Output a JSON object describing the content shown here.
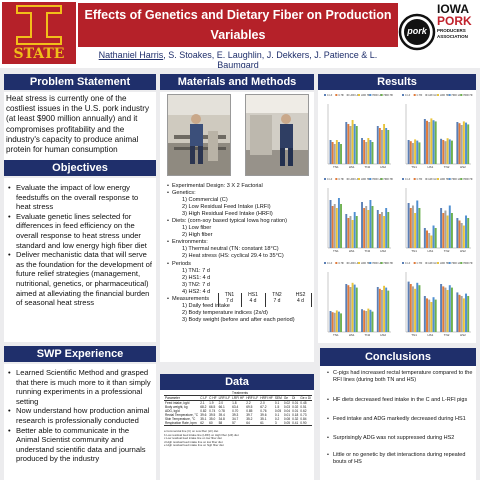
{
  "header": {
    "title_line1": "Effects of Genetics and Dietary Fiber on Production Variables",
    "title_line2": "in Response to Repeated Exposures to Heat Stress",
    "first_author": "Nathaniel Harris",
    "other_authors": ", S. Stoakes, E. Laughlin, J. Dekkers, J. Patience & L. Baumgard",
    "isu_logo_text": "STATE",
    "pork_logo_text": "pork",
    "iowa_logo": {
      "line1": "IOWA",
      "line2": "PORK",
      "line3": "PRODUCERS",
      "line4": "ASSOCIATION"
    }
  },
  "colors": {
    "title_bg": "#b52129",
    "section_bg": "#1f2f6b",
    "band_bg": "#ececee",
    "series": [
      "#5b7fb5",
      "#e07a3a",
      "#a5a5a5",
      "#e8c43c",
      "#4f8fd1",
      "#6db14f"
    ]
  },
  "problem": {
    "heading": "Problem Statement",
    "text": "Heat stress is currently one of the costliest issues in the U.S. pork industry (at least $900 million annually) and it compromises profitability and the industry's capacity to produce animal protein for human consumption"
  },
  "objectives": {
    "heading": "Objectives",
    "items": [
      "Evaluate the impact of low energy feedstuffs on the overall response to heat stress",
      "Evaluate genetic lines selected for differences in feed efficiency on the overall response to heat stress under standard and low energy high fiber diet",
      "Deliver mechanistic data that will serve as the foundation for the development of future relief strategies (management, nutritional, genetics, or pharmaceutical) aimed at alleviating the financial burden of seasonal heat stress"
    ]
  },
  "swp": {
    "heading": "SWP Experience",
    "items": [
      "Learned Scientific Method and grasped that there is much more to it than simply running experiments in a professional setting",
      "Now understand how production animal research is professionally conducted",
      "Better able to communicate in the Animal Scientist community and understand scientific data and journals produced by the industry"
    ]
  },
  "materials": {
    "heading": "Materials and Methods",
    "lines": [
      {
        "level": 1,
        "text": "Experimental Design: 3 X 2 Factorial"
      },
      {
        "level": 1,
        "text": "Genetics:"
      },
      {
        "level": 2,
        "text": "1)  Commercial (C)"
      },
      {
        "level": 2,
        "text": "2)  Low Residual Feed Intake (LRFI)"
      },
      {
        "level": 2,
        "text": "3)  High Residual Feed Intake (HRFI)"
      },
      {
        "level": 1,
        "text": "Diets: (corn-soy based typical Iowa hog ration)"
      },
      {
        "level": 2,
        "text": "1) Low fiber"
      },
      {
        "level": 2,
        "text": "2) High fiber"
      },
      {
        "level": 1,
        "text": "Environments:"
      },
      {
        "level": 2,
        "text": "1)  Thermal neutral (TN: constant 18°C)"
      },
      {
        "level": 2,
        "text": "2)  Heat stress (HS: cyclical 29.4 to 35°C)"
      },
      {
        "level": 1,
        "text": "Periods"
      },
      {
        "level": 2,
        "text": "1)  TN1: 7 d"
      },
      {
        "level": 2,
        "text": "2)  HS1: 4 d"
      },
      {
        "level": 2,
        "text": "3)  TN2: 7 d"
      },
      {
        "level": 2,
        "text": "4)  HS2: 4 d"
      },
      {
        "level": 1,
        "text": "Measurements"
      },
      {
        "level": 2,
        "text": "1)  Daily feed intake"
      },
      {
        "level": 2,
        "text": "2)  Body temperature indices (2x/d)"
      },
      {
        "level": 2,
        "text": "3)  Body weight (before and after each period)"
      }
    ],
    "timeline": [
      {
        "period": "TN1",
        "days": "7 d"
      },
      {
        "period": "HS1",
        "days": "4 d"
      },
      {
        "period": "TN2",
        "days": "7 d"
      },
      {
        "period": "HS2",
        "days": "4 d"
      }
    ]
  },
  "data": {
    "heading": "Data",
    "group_header": "Treatments",
    "columns": [
      "Parameter",
      "C LF",
      "C HF",
      "LRFI LF",
      "LRFI HF",
      "HRFI LF",
      "HRFI HF",
      "SEM",
      "Ge",
      "Di",
      "Ge x Di"
    ],
    "rows": [
      [
        "Feed intake, kg/d",
        "2.1",
        "1.9",
        "2.0",
        "1.8",
        "2.2",
        "2.0",
        "0.1",
        "0.02",
        "0.01",
        "0.45"
      ],
      [
        "Body weight, kg",
        "68.2",
        "66.5",
        "66.1",
        "63.4",
        "69.5",
        "67.2",
        "1.5",
        "0.03",
        "0.02",
        "0.51"
      ],
      [
        "ADG, kg/d",
        "0.82",
        "0.74",
        "0.78",
        "0.70",
        "0.85",
        "0.76",
        "0.05",
        "0.04",
        "0.01",
        "0.62"
      ],
      [
        "Rectal Temperature, °C",
        "39.6",
        "39.5",
        "39.4",
        "39.3",
        "39.7",
        "39.6",
        "0.1",
        "0.01",
        "0.18",
        "0.73"
      ],
      [
        "Skin Temperature, °C",
        "35.1",
        "35.0",
        "34.8",
        "34.7",
        "35.2",
        "35.1",
        "0.2",
        "0.08",
        "0.32",
        "0.84"
      ],
      [
        "Respiration Rate, bpm",
        "62",
        "60",
        "58",
        "57",
        "64",
        "61",
        "3",
        "0.05",
        "0.41",
        "0.90"
      ]
    ],
    "footnotes": [
      "a Commercial line (C) on Low fiber (LF) diet",
      "b Low residual feed intake line (LRFI) on High fiber (HF) diet",
      "c Low residual feed intake line on low fiber diet",
      "d High residual feed intake line on low fiber diet",
      "e High residual feed intake line on high fiber diet"
    ]
  },
  "results": {
    "heading": "Results",
    "legend_items": [
      "C LF",
      "C HF",
      "LRFI LF",
      "LRFI HF",
      "HRFI LF",
      "HRFI HF"
    ]
  },
  "chart_data": [
    {
      "type": "bar",
      "categories": [
        "TN1",
        "HS1",
        "TN2",
        "HS2"
      ],
      "series": [
        {
          "values": [
            39.2,
            40.1,
            39.3,
            39.9
          ]
        },
        {
          "values": [
            39.1,
            40.0,
            39.2,
            39.8
          ]
        },
        {
          "values": [
            39.0,
            39.9,
            39.1,
            39.7
          ]
        },
        {
          "values": [
            39.2,
            40.2,
            39.3,
            40.0
          ]
        },
        {
          "values": [
            39.1,
            40.0,
            39.2,
            39.8
          ]
        },
        {
          "values": [
            39.0,
            39.9,
            39.1,
            39.7
          ]
        }
      ],
      "ylim": [
        38,
        41
      ]
    },
    {
      "type": "bar",
      "categories": [
        "TN1",
        "HS1",
        "TN2",
        "HS2"
      ],
      "series": [
        {
          "values": [
            34.0,
            37.5,
            34.2,
            37.0
          ]
        },
        {
          "values": [
            33.8,
            37.2,
            34.0,
            36.8
          ]
        },
        {
          "values": [
            33.5,
            37.0,
            33.8,
            36.5
          ]
        },
        {
          "values": [
            34.1,
            37.6,
            34.3,
            37.1
          ]
        },
        {
          "values": [
            33.9,
            37.3,
            34.1,
            36.9
          ]
        },
        {
          "values": [
            33.6,
            37.1,
            33.9,
            36.6
          ]
        }
      ],
      "ylim": [
        30,
        40
      ]
    },
    {
      "type": "bar",
      "categories": [
        "TN1",
        "HS1",
        "TN2",
        "HS2"
      ],
      "series": [
        {
          "values": [
            2.4,
            1.7,
            2.3,
            1.9
          ]
        },
        {
          "values": [
            2.1,
            1.5,
            2.0,
            1.7
          ]
        },
        {
          "values": [
            2.2,
            1.6,
            2.1,
            1.8
          ]
        },
        {
          "values": [
            2.0,
            1.4,
            1.9,
            1.6
          ]
        },
        {
          "values": [
            2.5,
            1.8,
            2.4,
            2.0
          ]
        },
        {
          "values": [
            2.2,
            1.6,
            2.1,
            1.8
          ]
        }
      ],
      "ylim": [
        0,
        3
      ]
    },
    {
      "type": "bar",
      "categories": [
        "TN1",
        "HS1",
        "TN2",
        "HS2"
      ],
      "series": [
        {
          "values": [
            0.9,
            0.4,
            0.8,
            0.6
          ]
        },
        {
          "values": [
            0.8,
            0.35,
            0.7,
            0.55
          ]
        },
        {
          "values": [
            0.85,
            0.3,
            0.75,
            0.5
          ]
        },
        {
          "values": [
            0.7,
            0.25,
            0.65,
            0.45
          ]
        },
        {
          "values": [
            0.95,
            0.45,
            0.85,
            0.65
          ]
        },
        {
          "values": [
            0.8,
            0.4,
            0.7,
            0.6
          ]
        }
      ],
      "ylim": [
        0,
        1.2
      ]
    },
    {
      "type": "bar",
      "categories": [
        "TN1",
        "HS1",
        "TN2",
        "HS2"
      ],
      "series": [
        {
          "values": [
            35,
            80,
            38,
            75
          ]
        },
        {
          "values": [
            33,
            78,
            36,
            72
          ]
        },
        {
          "values": [
            32,
            75,
            35,
            70
          ]
        },
        {
          "values": [
            36,
            82,
            39,
            77
          ]
        },
        {
          "values": [
            34,
            79,
            37,
            74
          ]
        },
        {
          "values": [
            31,
            74,
            34,
            69
          ]
        }
      ],
      "ylim": [
        0,
        100
      ]
    },
    {
      "type": "bar",
      "categories": [
        "TN1",
        "HS1",
        "TN2",
        "HS2"
      ],
      "series": [
        {
          "values": [
            0.42,
            0.3,
            0.4,
            0.33
          ]
        },
        {
          "values": [
            0.4,
            0.28,
            0.38,
            0.31
          ]
        },
        {
          "values": [
            0.38,
            0.27,
            0.37,
            0.3
          ]
        },
        {
          "values": [
            0.36,
            0.25,
            0.35,
            0.28
          ]
        },
        {
          "values": [
            0.41,
            0.29,
            0.39,
            0.32
          ]
        },
        {
          "values": [
            0.39,
            0.27,
            0.37,
            0.3
          ]
        }
      ],
      "ylim": [
        0,
        0.5
      ]
    }
  ],
  "conclusions": {
    "heading": "Conclusions",
    "items": [
      "C-pigs had increased rectal temperature compared to the RFI lines (during both TN and HS)",
      "HF diets decreased feed intake in the C and L-RFI pigs",
      "Feed intake and ADG markedly decreased during HS1",
      "Surprisingly ADG was not suppressed during HS2",
      "Little or no genetic by diet interactions during repeated bouts of HS"
    ]
  }
}
